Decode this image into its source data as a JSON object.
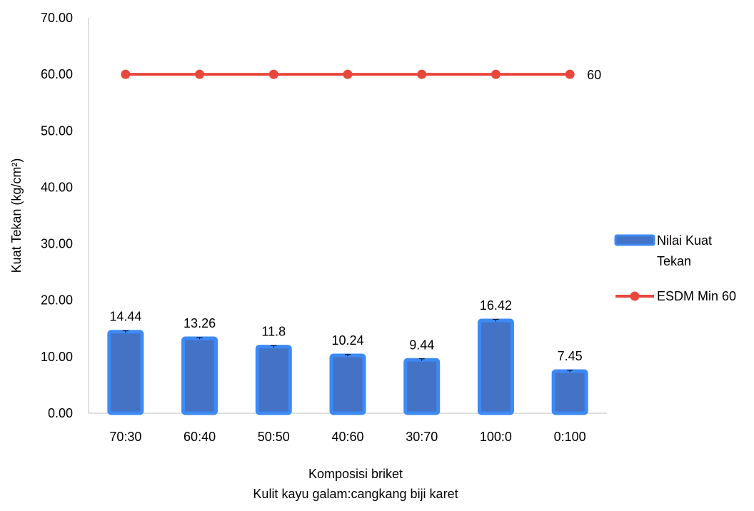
{
  "chart_data": {
    "type": "bar",
    "xlabel_lines": [
      "Komposisi briket",
      "Kulit kayu galam:cangkang biji karet"
    ],
    "ylabel": "Kuat Tekan (kg/cm²)",
    "ylim": [
      0,
      70
    ],
    "yticks": [
      "0.00",
      "10.00",
      "20.00",
      "30.00",
      "40.00",
      "50.00",
      "60.00",
      "70.00"
    ],
    "ytick_values": [
      0,
      10,
      20,
      30,
      40,
      50,
      60,
      70
    ],
    "categories": [
      "70:30",
      "60:40",
      "50:50",
      "40:60",
      "30:70",
      "100:0",
      "0:100"
    ],
    "series": [
      {
        "name": "Nilai Kuat Tekan",
        "kind": "bar",
        "color": "#4472C4",
        "edge_color": "#3D8AF5",
        "values": [
          14.44,
          13.26,
          11.8,
          10.24,
          9.44,
          16.42,
          7.45
        ],
        "labels": [
          "14.44",
          "13.26",
          "11.8",
          "10.24",
          "9.44",
          "16.42",
          "7.45"
        ],
        "error": [
          0.15,
          0.15,
          0.15,
          0.15,
          0.2,
          0.2,
          0.15
        ]
      },
      {
        "name": "ESDM Min 60",
        "kind": "line",
        "color": "#E8473C",
        "values": [
          60,
          60,
          60,
          60,
          60,
          60,
          60
        ],
        "end_label": "60"
      }
    ],
    "legend_lines": [
      [
        "Nilai Kuat",
        "Tekan"
      ],
      [
        "ESDM Min 60"
      ]
    ],
    "legend_position": "right",
    "grid": false
  }
}
